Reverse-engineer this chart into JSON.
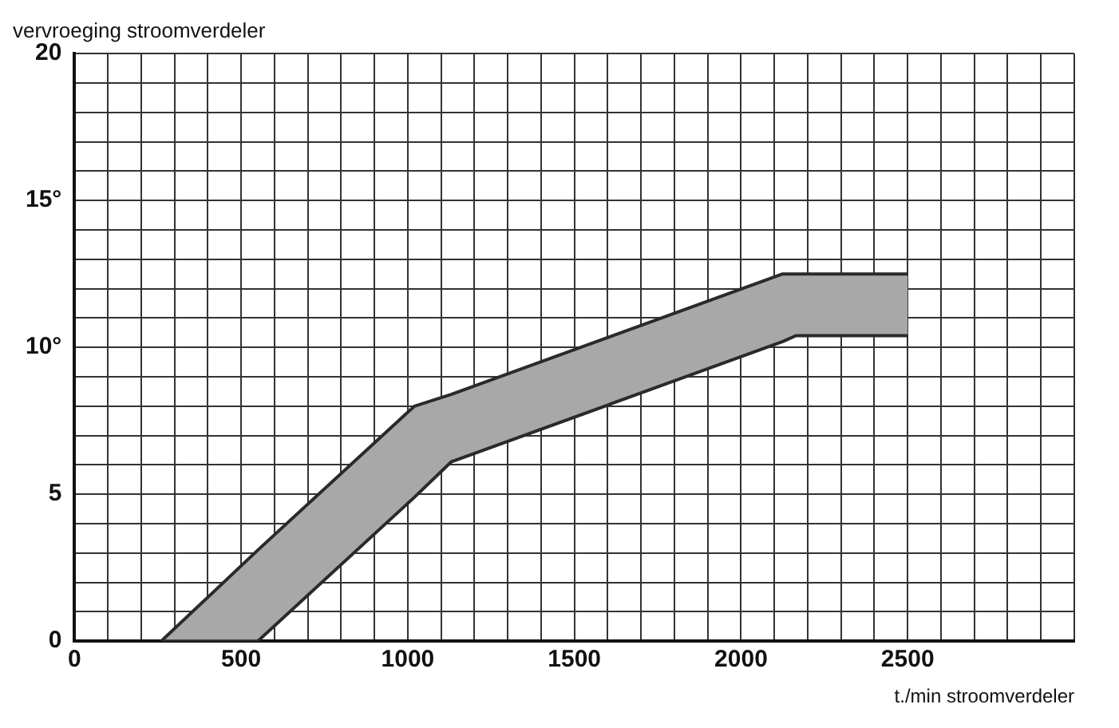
{
  "chart_data": {
    "type": "area",
    "ylabel": "vervroeging stroomverdeler",
    "xlabel": "t./min stroomverdeler",
    "series": [
      {
        "type": "line",
        "color": "#2a2a2a",
        "x": [
          260,
          550,
          1020,
          1130,
          2125,
          2165,
          2500
        ],
        "values": [
          0,
          0,
          4.9,
          6.1,
          10.2,
          10.4,
          10.4
        ]
      },
      {
        "type": "area",
        "color": "#a8a8a8",
        "x": [
          260,
          550,
          1020,
          1130,
          2125,
          2165,
          2500
        ],
        "values": [
          0,
          3.1,
          8,
          8.4,
          12.5,
          12.5,
          12.5
        ]
      }
    ],
    "xlim": [
      0,
      3000
    ],
    "xticks": [
      0,
      {
        "value": 100,
        "label": null
      },
      {
        "value": 200,
        "label": null
      },
      {
        "value": 300,
        "label": null
      },
      {
        "value": 400,
        "label": null
      },
      500,
      {
        "value": 600,
        "label": null
      },
      {
        "value": 700,
        "label": null
      },
      {
        "value": 800,
        "label": null
      },
      {
        "value": 900,
        "label": null
      },
      1000,
      {
        "value": 1100,
        "label": null
      },
      {
        "value": 1200,
        "label": null
      },
      {
        "value": 1300,
        "label": null
      },
      {
        "value": 1400,
        "label": null
      },
      1500,
      {
        "value": 1600,
        "label": null
      },
      {
        "value": 1700,
        "label": null
      },
      {
        "value": 1800,
        "label": null
      },
      {
        "value": 1900,
        "label": null
      },
      2000,
      {
        "value": 2100,
        "label": null
      },
      {
        "value": 2200,
        "label": null
      },
      {
        "value": 2300,
        "label": null
      },
      {
        "value": 2400,
        "label": null
      },
      2500,
      {
        "value": 2600,
        "label": null
      },
      {
        "value": 2700,
        "label": null
      },
      {
        "value": 2800,
        "label": null
      },
      {
        "value": 2900,
        "label": null
      },
      {
        "value": 3000,
        "label": null
      }
    ],
    "ylim": [
      0,
      20
    ],
    "yticks": [
      0,
      {
        "value": 1,
        "label": null
      },
      {
        "value": 2,
        "label": null
      },
      {
        "value": 3,
        "label": null
      },
      {
        "value": 4,
        "label": null
      },
      5,
      {
        "value": 6,
        "label": null
      },
      {
        "value": 7,
        "label": null
      },
      {
        "value": 8,
        "label": null
      },
      {
        "value": 9,
        "label": null
      },
      {
        "value": 10,
        "label": "10°"
      },
      {
        "value": 11,
        "label": null
      },
      {
        "value": 12,
        "label": null
      },
      {
        "value": 13,
        "label": null
      },
      {
        "value": 14,
        "label": null
      },
      {
        "value": 15,
        "label": "15°"
      },
      {
        "value": 16,
        "label": null
      },
      {
        "value": 17,
        "label": null
      },
      {
        "value": 18,
        "label": null
      },
      {
        "value": 19,
        "label": null
      },
      20
    ],
    "grid": true,
    "legend": false
  }
}
